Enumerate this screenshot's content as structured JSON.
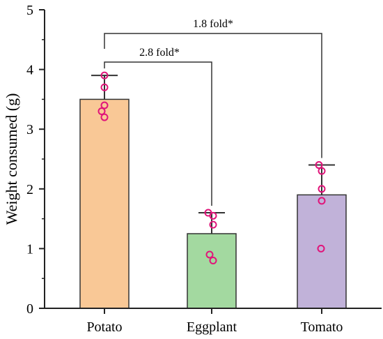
{
  "chart_data": {
    "type": "bar",
    "title": "",
    "xlabel": "",
    "ylabel": "Weight consumed (g)",
    "ylim": [
      0,
      5
    ],
    "yticks": [
      "0",
      "1",
      "2",
      "3",
      "4",
      "5"
    ],
    "categories": [
      "Potato",
      "Eggplant",
      "Tomato"
    ],
    "values": [
      3.5,
      1.25,
      1.9
    ],
    "error_upper": [
      3.9,
      1.6,
      2.4
    ],
    "bar_colors": [
      "#f9c896",
      "#a3d9a0",
      "#c1b2d9"
    ],
    "point_color": "#e0157a",
    "points": [
      [
        3.9,
        3.7,
        3.4,
        3.3,
        3.2
      ],
      [
        1.6,
        1.55,
        1.4,
        0.9,
        0.8
      ],
      [
        2.4,
        2.3,
        2.0,
        1.8,
        1.0
      ]
    ],
    "annotations": [
      {
        "text": "2.8 fold*",
        "from": "Potato",
        "to": "Eggplant"
      },
      {
        "text": "1.8 fold*",
        "from": "Potato",
        "to": "Tomato"
      }
    ],
    "grid": false
  }
}
